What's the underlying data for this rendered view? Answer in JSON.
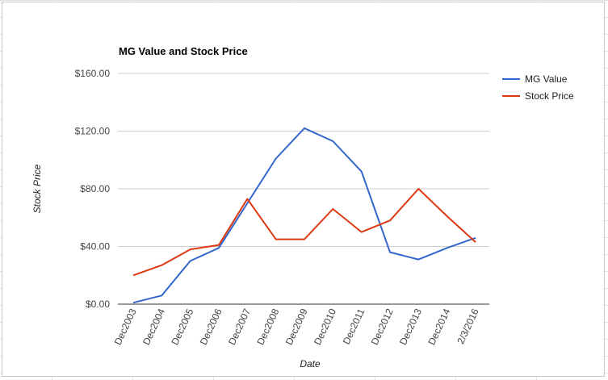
{
  "chart_data": {
    "type": "line",
    "title": "MG Value and Stock Price",
    "xlabel": "Date",
    "ylabel": "Stock Price",
    "categories": [
      "Dec2003",
      "Dec2004",
      "Dec2005",
      "Dec2006",
      "Dec2007",
      "Dec2008",
      "Dec2009",
      "Dec2010",
      "Dec2011",
      "Dec2012",
      "Dec2013",
      "Dec2014",
      "2/3/2016"
    ],
    "y_ticks": [
      "$0.00",
      "$40.00",
      "$80.00",
      "$120.00",
      "$160.00"
    ],
    "ylim": [
      0,
      160
    ],
    "grid": true,
    "legend_position": "right",
    "series": [
      {
        "name": "MG Value",
        "color": "#3366cc",
        "values": [
          1,
          6,
          30,
          39,
          70,
          101,
          122,
          113,
          92,
          36,
          31,
          39,
          46
        ]
      },
      {
        "name": "Stock Price",
        "color": "#dc3912",
        "values": [
          20,
          27,
          38,
          41,
          73,
          45,
          45,
          66,
          50,
          58,
          80,
          61,
          43
        ]
      }
    ]
  }
}
